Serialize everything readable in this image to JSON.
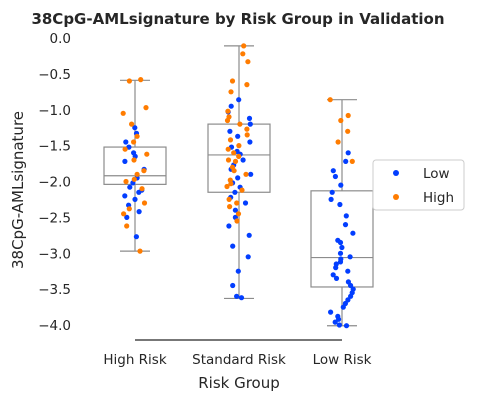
{
  "chart_data": {
    "type": "box+strip",
    "title": "38CpG-AMLsignature by Risk Group in Validation",
    "xlabel": "Risk Group",
    "ylabel": "38CpG-AMLsignature",
    "categories": [
      "High Risk",
      "Standard Risk",
      "Low Risk"
    ],
    "ylim": [
      -4.2,
      0.0
    ],
    "yticks": [
      0.0,
      -0.5,
      -1.0,
      -1.5,
      -2.0,
      -2.5,
      -3.0,
      -3.5,
      -4.0
    ],
    "ytick_labels": [
      "0.0",
      "−0.5",
      "−1.0",
      "−1.5",
      "−2.0",
      "−2.5",
      "−3.0",
      "−3.5",
      "−4.0"
    ],
    "grid": false,
    "legend": {
      "placement": "right",
      "entries": [
        {
          "name": "Low",
          "color": "#023eff"
        },
        {
          "name": "High",
          "color": "#ff7c00"
        }
      ]
    },
    "boxes": [
      {
        "category": "High Risk",
        "whisker_low": -2.97,
        "q1": -2.04,
        "median": -1.92,
        "q3": -1.52,
        "whisker_high": -0.59
      },
      {
        "category": "Standard Risk",
        "whisker_low": -3.63,
        "q1": -2.15,
        "median": -1.63,
        "q3": -1.2,
        "whisker_high": -0.11
      },
      {
        "category": "Low Risk",
        "whisker_low": -4.01,
        "q1": -3.47,
        "median": -3.06,
        "q3": -2.13,
        "whisker_high": -0.86
      }
    ],
    "series": [
      {
        "name": "Low",
        "color": "#023eff",
        "points": [
          {
            "category": "High Risk",
            "values": [
              -1.25,
              -1.33,
              -1.45,
              -1.52,
              -1.6,
              -1.65,
              -1.72,
              -1.83,
              -1.95,
              -2.02,
              -2.08,
              -2.12,
              -2.15,
              -2.2,
              -2.25,
              -2.33,
              -2.42,
              -2.5,
              -2.77
            ]
          },
          {
            "category": "Standard Risk",
            "values": [
              -0.86,
              -0.95,
              -1.03,
              -1.12,
              -1.2,
              -1.3,
              -1.37,
              -1.45,
              -1.52,
              -1.58,
              -1.62,
              -1.7,
              -1.77,
              -1.83,
              -1.9,
              -1.95,
              -2.02,
              -2.08,
              -2.15,
              -2.22,
              -2.3,
              -2.4,
              -2.5,
              -2.62,
              -2.75,
              -2.9,
              -3.05,
              -3.25,
              -3.45,
              -3.62,
              -3.6
            ]
          },
          {
            "category": "Low Risk",
            "values": [
              -1.6,
              -1.72,
              -1.85,
              -1.93,
              -2.05,
              -2.15,
              -2.25,
              -2.32,
              -2.48,
              -2.6,
              -2.72,
              -2.82,
              -2.85,
              -2.92,
              -3.0,
              -3.05,
              -3.08,
              -3.12,
              -3.15,
              -3.2,
              -3.25,
              -3.3,
              -3.35,
              -3.4,
              -3.45,
              -3.5,
              -3.55,
              -3.6,
              -3.65,
              -3.7,
              -3.75,
              -3.82,
              -3.88,
              -3.92,
              -3.96,
              -4.0,
              -4.01
            ]
          }
        ]
      },
      {
        "name": "High",
        "color": "#ff7c00",
        "points": [
          {
            "category": "High Risk",
            "values": [
              -0.58,
              -0.6,
              -0.97,
              -1.05,
              -1.2,
              -1.37,
              -1.45,
              -1.55,
              -1.62,
              -1.7,
              -1.85,
              -1.9,
              -1.97,
              -2.0,
              -2.1,
              -2.3,
              -2.38,
              -2.45,
              -2.62,
              -2.97
            ]
          },
          {
            "category": "Standard Risk",
            "values": [
              -0.11,
              -0.22,
              -0.33,
              -0.6,
              -0.65,
              -0.75,
              -1.02,
              -1.1,
              -1.15,
              -1.2,
              -1.27,
              -1.35,
              -1.42,
              -1.5,
              -1.55,
              -1.6,
              -1.65,
              -1.7,
              -1.72,
              -1.8,
              -1.85,
              -1.9,
              -1.98,
              -2.03,
              -2.07,
              -2.12,
              -2.25,
              -2.3,
              -2.35,
              -2.45,
              -2.55
            ]
          },
          {
            "category": "Low Risk",
            "values": [
              -0.86,
              -1.08,
              -1.15,
              -1.3,
              -1.45,
              -1.72
            ]
          }
        ]
      }
    ]
  }
}
